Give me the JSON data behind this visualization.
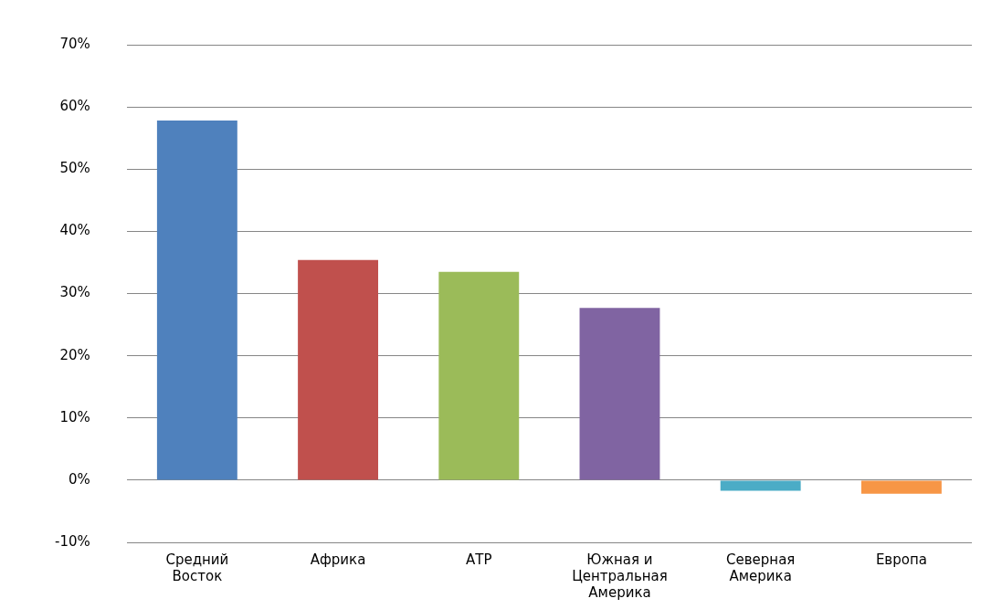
{
  "chart_data": {
    "type": "bar",
    "categories": [
      "Средний Восток",
      "Африка",
      "АТР",
      "Южная и Центральная Америка",
      "Северная Америка",
      "Европа"
    ],
    "values": [
      57.8,
      35.4,
      33.5,
      27.7,
      -1.7,
      -2.2
    ],
    "colors": [
      "#4f81bd",
      "#c0504d",
      "#9bbb59",
      "#8064a2",
      "#4bacc6",
      "#f79646"
    ],
    "ylim": [
      -10,
      70
    ],
    "yticks": [
      {
        "value": -10,
        "label": "-10%"
      },
      {
        "value": 0,
        "label": "0%"
      },
      {
        "value": 10,
        "label": "10%"
      },
      {
        "value": 20,
        "label": "20%"
      },
      {
        "value": 30,
        "label": "30%"
      },
      {
        "value": 40,
        "label": "40%"
      },
      {
        "value": 50,
        "label": "50%"
      },
      {
        "value": 60,
        "label": "60%"
      },
      {
        "value": 70,
        "label": "70%"
      }
    ],
    "grid": true,
    "legend": false
  }
}
